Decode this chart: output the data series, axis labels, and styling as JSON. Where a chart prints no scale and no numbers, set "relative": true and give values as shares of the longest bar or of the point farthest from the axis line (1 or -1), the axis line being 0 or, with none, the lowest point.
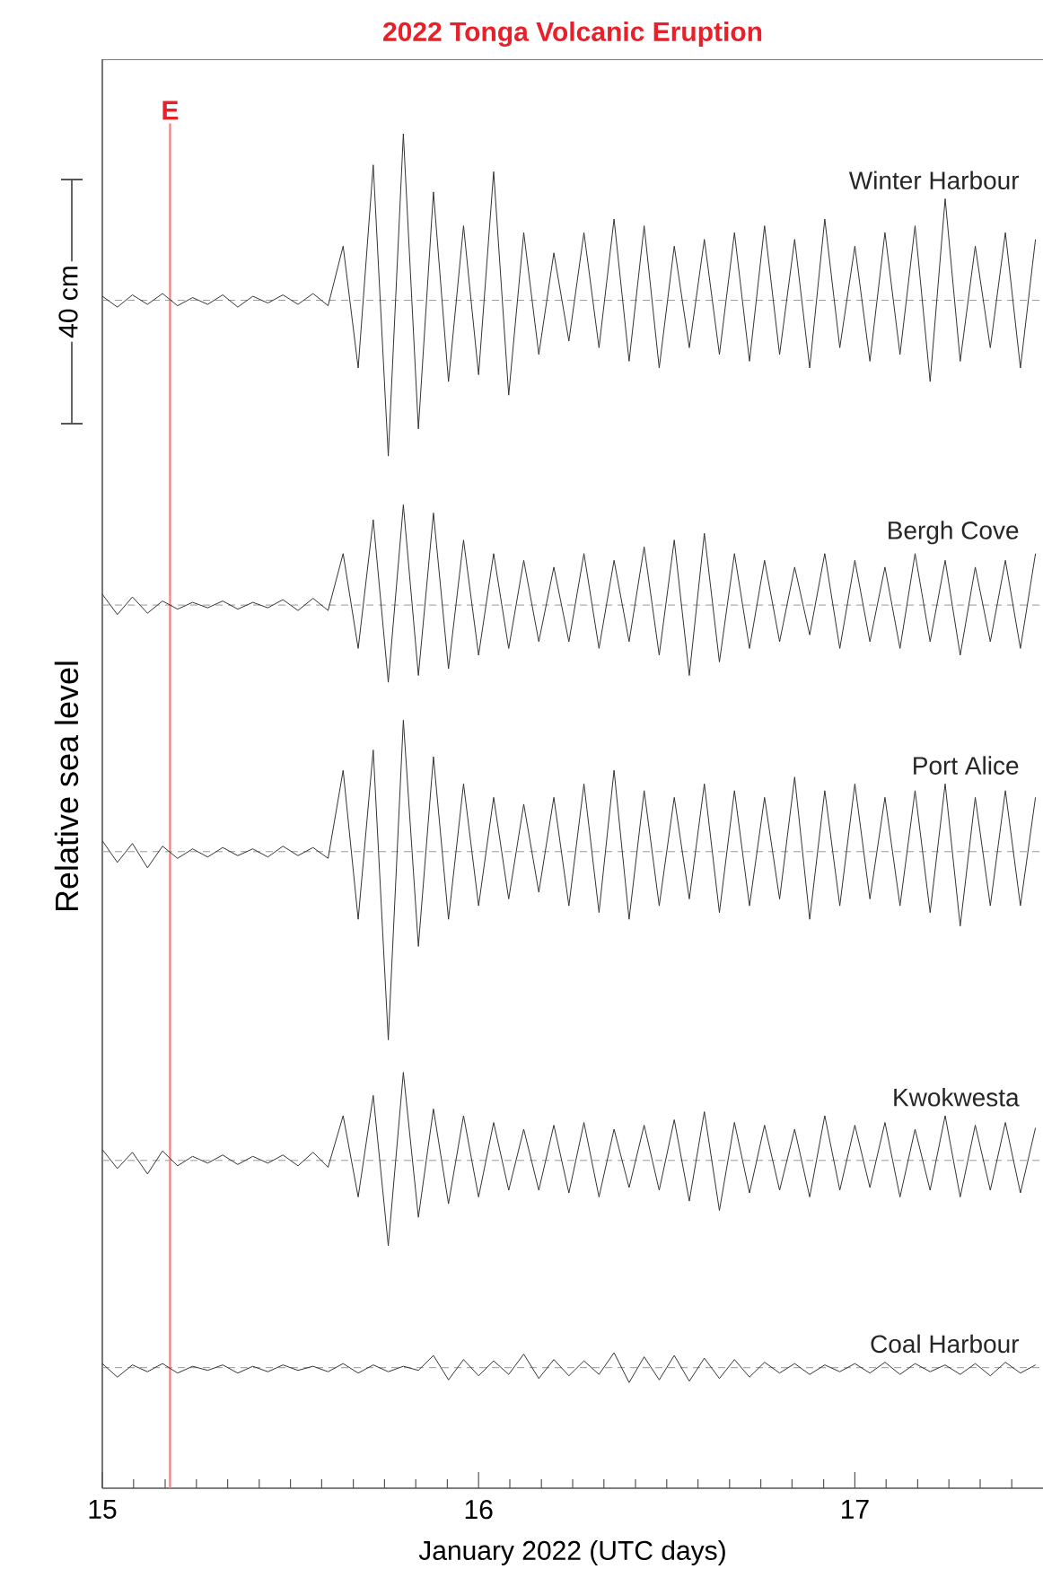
{
  "chart_data": {
    "type": "line",
    "title": "2022 Tonga Volcanic Eruption",
    "xlabel": "January 2022 (UTC days)",
    "ylabel": "Relative sea level",
    "relative": true,
    "xlim": [
      15,
      17.5
    ],
    "xticks": [
      15,
      16,
      17,
      {
        "value": 15.083,
        "label": null
      },
      {
        "value": 15.167,
        "label": null
      },
      {
        "value": 15.25,
        "label": null
      },
      {
        "value": 15.333,
        "label": null
      },
      {
        "value": 15.417,
        "label": null
      },
      {
        "value": 15.5,
        "label": null
      },
      {
        "value": 15.583,
        "label": null
      },
      {
        "value": 15.667,
        "label": null
      },
      {
        "value": 15.75,
        "label": null
      },
      {
        "value": 15.833,
        "label": null
      },
      {
        "value": 15.917,
        "label": null
      },
      {
        "value": 16.083,
        "label": null
      },
      {
        "value": 16.167,
        "label": null
      },
      {
        "value": 16.25,
        "label": null
      },
      {
        "value": 16.333,
        "label": null
      },
      {
        "value": 16.417,
        "label": null
      },
      {
        "value": 16.5,
        "label": null
      },
      {
        "value": 16.583,
        "label": null
      },
      {
        "value": 16.667,
        "label": null
      },
      {
        "value": 16.75,
        "label": null
      },
      {
        "value": 16.833,
        "label": null
      },
      {
        "value": 16.917,
        "label": null
      },
      {
        "value": 17.083,
        "label": null
      },
      {
        "value": 17.167,
        "label": null
      },
      {
        "value": 17.25,
        "label": null
      },
      {
        "value": 17.333,
        "label": null
      },
      {
        "value": 17.417,
        "label": null
      }
    ],
    "x": [
      15,
      15.04,
      15.08,
      15.12,
      15.16,
      15.2,
      15.24,
      15.28,
      15.32,
      15.36,
      15.4,
      15.44,
      15.48,
      15.52,
      15.56,
      15.6,
      15.64,
      15.68,
      15.72,
      15.76,
      15.8,
      15.84,
      15.88,
      15.92,
      15.96,
      16,
      16.04,
      16.08,
      16.12,
      16.16,
      16.2,
      16.24,
      16.28,
      16.32,
      16.36,
      16.4,
      16.44,
      16.48,
      16.52,
      16.56,
      16.6,
      16.64,
      16.68,
      16.72,
      16.76,
      16.8,
      16.84,
      16.88,
      16.92,
      16.96,
      17,
      17.04,
      17.08,
      17.12,
      17.16,
      17.2,
      17.24,
      17.28,
      17.32,
      17.36,
      17.4,
      17.44,
      17.48
    ],
    "series": [
      {
        "name": "Winter Harbour",
        "color": "#333333",
        "values": [
          0.88,
          0.872,
          0.881,
          0.874,
          0.882,
          0.873,
          0.879,
          0.874,
          0.881,
          0.872,
          0.88,
          0.875,
          0.881,
          0.874,
          0.882,
          0.873,
          0.917,
          0.827,
          0.977,
          0.762,
          1.0,
          0.782,
          0.957,
          0.817,
          0.932,
          0.822,
          0.972,
          0.807,
          0.927,
          0.837,
          0.912,
          0.847,
          0.927,
          0.842,
          0.937,
          0.832,
          0.932,
          0.827,
          0.917,
          0.842,
          0.922,
          0.837,
          0.927,
          0.832,
          0.932,
          0.837,
          0.922,
          0.827,
          0.937,
          0.842,
          0.917,
          0.832,
          0.927,
          0.837,
          0.932,
          0.817,
          0.952,
          0.832,
          0.917,
          0.842,
          0.927,
          0.827,
          0.922
        ]
      },
      {
        "name": "Bergh Cove",
        "color": "#333333",
        "values": [
          0.66,
          0.645,
          0.658,
          0.646,
          0.655,
          0.649,
          0.654,
          0.65,
          0.655,
          0.649,
          0.654,
          0.65,
          0.656,
          0.648,
          0.657,
          0.648,
          0.69,
          0.62,
          0.715,
          0.595,
          0.726,
          0.6,
          0.72,
          0.605,
          0.7,
          0.615,
          0.69,
          0.62,
          0.685,
          0.625,
          0.68,
          0.625,
          0.69,
          0.62,
          0.685,
          0.625,
          0.695,
          0.615,
          0.7,
          0.6,
          0.705,
          0.61,
          0.69,
          0.62,
          0.685,
          0.625,
          0.68,
          0.63,
          0.69,
          0.62,
          0.685,
          0.625,
          0.68,
          0.62,
          0.69,
          0.625,
          0.685,
          0.615,
          0.68,
          0.625,
          0.685,
          0.62,
          0.69
        ]
      },
      {
        "name": "Port Alice",
        "color": "#333333",
        "values": [
          0.478,
          0.462,
          0.476,
          0.458,
          0.474,
          0.465,
          0.472,
          0.466,
          0.473,
          0.467,
          0.472,
          0.466,
          0.474,
          0.467,
          0.473,
          0.465,
          0.53,
          0.42,
          0.545,
          0.331,
          0.567,
          0.4,
          0.54,
          0.42,
          0.52,
          0.43,
          0.51,
          0.435,
          0.505,
          0.44,
          0.51,
          0.43,
          0.52,
          0.425,
          0.53,
          0.42,
          0.515,
          0.43,
          0.51,
          0.435,
          0.52,
          0.425,
          0.515,
          0.43,
          0.51,
          0.435,
          0.525,
          0.42,
          0.515,
          0.43,
          0.52,
          0.435,
          0.51,
          0.43,
          0.515,
          0.425,
          0.52,
          0.415,
          0.51,
          0.43,
          0.515,
          0.43,
          0.51
        ]
      },
      {
        "name": "Kwokwesta",
        "color": "#333333",
        "values": [
          0.25,
          0.236,
          0.248,
          0.232,
          0.249,
          0.238,
          0.245,
          0.24,
          0.246,
          0.239,
          0.245,
          0.24,
          0.246,
          0.238,
          0.248,
          0.237,
          0.275,
          0.215,
          0.29,
          0.179,
          0.307,
          0.2,
          0.28,
          0.21,
          0.275,
          0.215,
          0.27,
          0.22,
          0.265,
          0.22,
          0.268,
          0.218,
          0.27,
          0.215,
          0.265,
          0.222,
          0.268,
          0.22,
          0.272,
          0.212,
          0.278,
          0.205,
          0.27,
          0.218,
          0.268,
          0.22,
          0.265,
          0.215,
          0.275,
          0.22,
          0.268,
          0.222,
          0.27,
          0.215,
          0.265,
          0.22,
          0.275,
          0.215,
          0.268,
          0.22,
          0.27,
          0.218,
          0.266
        ]
      },
      {
        "name": "Coal Harbour",
        "color": "#333333",
        "values": [
          0.092,
          0.082,
          0.091,
          0.086,
          0.092,
          0.085,
          0.09,
          0.087,
          0.091,
          0.085,
          0.09,
          0.086,
          0.091,
          0.087,
          0.09,
          0.086,
          0.092,
          0.085,
          0.091,
          0.086,
          0.09,
          0.087,
          0.098,
          0.08,
          0.095,
          0.083,
          0.094,
          0.084,
          0.099,
          0.081,
          0.095,
          0.083,
          0.094,
          0.084,
          0.1,
          0.078,
          0.097,
          0.08,
          0.098,
          0.079,
          0.096,
          0.081,
          0.095,
          0.082,
          0.093,
          0.085,
          0.092,
          0.084,
          0.091,
          0.086,
          0.092,
          0.085,
          0.093,
          0.084,
          0.092,
          0.086,
          0.091,
          0.084,
          0.092,
          0.083,
          0.093,
          0.085,
          0.091
        ]
      }
    ],
    "ref_lines": [
      {
        "axis": "x",
        "value": 15.18,
        "label": "E",
        "color": "#f07f7f",
        "line_style": "solid"
      },
      {
        "axis": "y",
        "value": 0.877,
        "color": "#999999",
        "line_style": "dashed"
      },
      {
        "axis": "y",
        "value": 0.652,
        "color": "#999999",
        "line_style": "dashed"
      },
      {
        "axis": "y",
        "value": 0.47,
        "color": "#999999",
        "line_style": "dashed"
      },
      {
        "axis": "y",
        "value": 0.242,
        "color": "#999999",
        "line_style": "dashed"
      },
      {
        "axis": "y",
        "value": 0.089,
        "color": "#999999",
        "line_style": "dashed"
      }
    ],
    "annotations": [
      "40 cm"
    ]
  }
}
